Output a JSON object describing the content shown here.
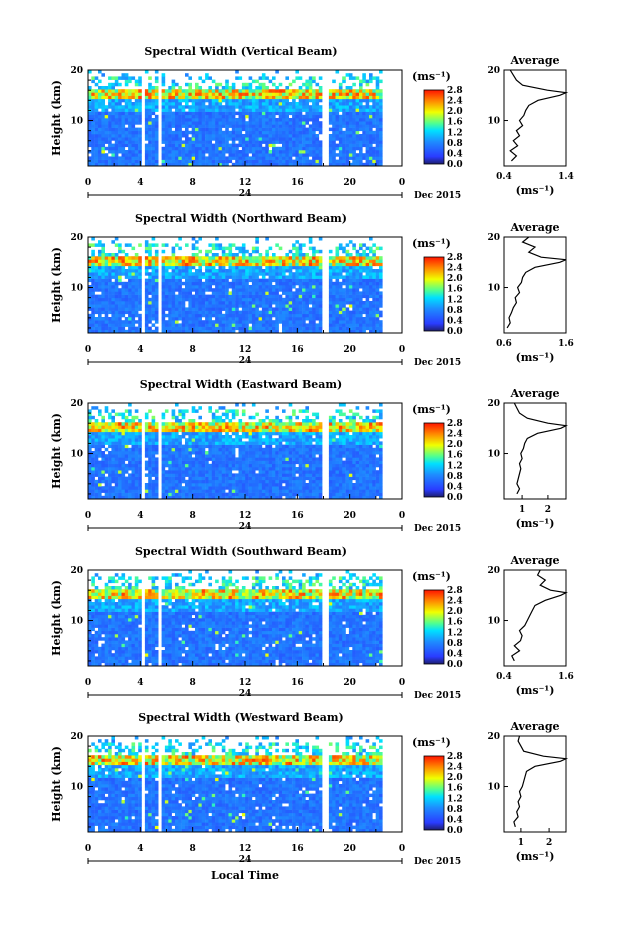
{
  "chart_data": [
    {
      "type": "heatmap",
      "title": "Spectral Width (Vertical Beam)",
      "ylabel": "Height (km)",
      "xticks": [
        "0",
        "4",
        "8",
        "12",
        "16",
        "20",
        "0"
      ],
      "xlim": [
        0,
        24
      ],
      "ylim": [
        1,
        20
      ],
      "yticks": [
        "20",
        "10"
      ],
      "date_left": "24",
      "date_right": "Dec 2015",
      "colorbar": {
        "unit": "(ms⁻¹)",
        "ticks": [
          "2.8",
          "2.4",
          "2.0",
          "1.6",
          "1.2",
          "0.8",
          "0.4",
          "0.0"
        ],
        "range": [
          0,
          2.8
        ]
      },
      "average": {
        "title": "Average",
        "xlabel": "(ms⁻¹)",
        "xticks": [
          "0.4",
          "1.4"
        ],
        "xlim": [
          0.4,
          1.4
        ],
        "yticks": [
          "20",
          "10"
        ],
        "profile": [
          [
            0.52,
            2
          ],
          [
            0.6,
            3
          ],
          [
            0.5,
            4
          ],
          [
            0.62,
            5
          ],
          [
            0.55,
            6
          ],
          [
            0.65,
            7
          ],
          [
            0.6,
            8
          ],
          [
            0.7,
            9
          ],
          [
            0.65,
            10
          ],
          [
            0.72,
            11
          ],
          [
            0.75,
            12
          ],
          [
            0.8,
            13
          ],
          [
            0.95,
            14
          ],
          [
            1.3,
            15
          ],
          [
            1.4,
            15.5
          ],
          [
            1.1,
            16
          ],
          [
            0.7,
            17
          ],
          [
            0.6,
            18
          ],
          [
            0.55,
            19
          ],
          [
            0.5,
            20
          ]
        ]
      }
    },
    {
      "type": "heatmap",
      "title": "Spectral Width (Northward Beam)",
      "ylabel": "Height (km)",
      "xticks": [
        "0",
        "4",
        "8",
        "12",
        "16",
        "20",
        "0"
      ],
      "xlim": [
        0,
        24
      ],
      "ylim": [
        1,
        20
      ],
      "yticks": [
        "20",
        "10"
      ],
      "date_left": "24",
      "date_right": "Dec 2015",
      "colorbar": {
        "unit": "(ms⁻¹)",
        "ticks": [
          "2.8",
          "2.4",
          "2.0",
          "1.6",
          "1.2",
          "0.8",
          "0.4",
          "0.0"
        ],
        "range": [
          0,
          2.8
        ]
      },
      "average": {
        "title": "Average",
        "xlabel": "(ms⁻¹)",
        "xticks": [
          "0.6",
          "1.6"
        ],
        "xlim": [
          0.6,
          1.6
        ],
        "yticks": [
          "20",
          "10"
        ],
        "profile": [
          [
            0.65,
            2
          ],
          [
            0.7,
            3
          ],
          [
            0.68,
            4
          ],
          [
            0.72,
            5
          ],
          [
            0.75,
            6
          ],
          [
            0.8,
            7
          ],
          [
            0.78,
            8
          ],
          [
            0.85,
            9
          ],
          [
            0.82,
            10
          ],
          [
            0.88,
            11
          ],
          [
            0.9,
            12
          ],
          [
            0.95,
            13
          ],
          [
            1.1,
            14
          ],
          [
            1.5,
            15
          ],
          [
            1.6,
            15.5
          ],
          [
            1.2,
            16
          ],
          [
            1.0,
            17
          ],
          [
            1.1,
            18
          ],
          [
            0.9,
            19
          ],
          [
            1.0,
            20
          ]
        ]
      }
    },
    {
      "type": "heatmap",
      "title": "Spectral Width (Eastward Beam)",
      "ylabel": "Height (km)",
      "xticks": [
        "0",
        "4",
        "8",
        "12",
        "16",
        "20",
        "0"
      ],
      "xlim": [
        0,
        24
      ],
      "ylim": [
        1,
        20
      ],
      "yticks": [
        "20",
        "10"
      ],
      "date_left": "24",
      "date_right": "Dec 2015",
      "colorbar": {
        "unit": "(ms⁻¹)",
        "ticks": [
          "2.8",
          "2.4",
          "2.0",
          "1.6",
          "1.2",
          "0.8",
          "0.4",
          "0.0"
        ],
        "range": [
          0,
          2.8
        ]
      },
      "average": {
        "title": "Average",
        "xlabel": "(ms⁻¹)",
        "xticks": [
          "1",
          "2"
        ],
        "xlim": [
          0.3,
          2.7
        ],
        "yticks": [
          "20",
          "10"
        ],
        "profile": [
          [
            0.8,
            2
          ],
          [
            0.9,
            3
          ],
          [
            0.8,
            4
          ],
          [
            0.85,
            5
          ],
          [
            0.9,
            6
          ],
          [
            0.95,
            7
          ],
          [
            0.9,
            8
          ],
          [
            1.0,
            9
          ],
          [
            0.95,
            10
          ],
          [
            1.05,
            11
          ],
          [
            1.1,
            12
          ],
          [
            1.2,
            13
          ],
          [
            1.6,
            14
          ],
          [
            2.5,
            15
          ],
          [
            2.7,
            15.5
          ],
          [
            2.0,
            16
          ],
          [
            1.2,
            17
          ],
          [
            0.9,
            18
          ],
          [
            0.8,
            19
          ],
          [
            0.7,
            20
          ]
        ]
      }
    },
    {
      "type": "heatmap",
      "title": "Spectral Width (Southward Beam)",
      "ylabel": "Height (km)",
      "xticks": [
        "0",
        "4",
        "8",
        "12",
        "16",
        "20",
        "0"
      ],
      "xlim": [
        0,
        24
      ],
      "ylim": [
        1,
        20
      ],
      "yticks": [
        "20",
        "10"
      ],
      "date_left": "24",
      "date_right": "Dec 2015",
      "colorbar": {
        "unit": "(ms⁻¹)",
        "ticks": [
          "2.8",
          "2.4",
          "2.0",
          "1.6",
          "1.2",
          "0.8",
          "0.4",
          "0.0"
        ],
        "range": [
          0,
          2.8
        ]
      },
      "average": {
        "title": "Average",
        "xlabel": "(ms⁻¹)",
        "xticks": [
          "0.4",
          "1.6"
        ],
        "xlim": [
          0.4,
          1.6
        ],
        "yticks": [
          "20",
          "10"
        ],
        "profile": [
          [
            0.6,
            2
          ],
          [
            0.55,
            3
          ],
          [
            0.7,
            4
          ],
          [
            0.6,
            5
          ],
          [
            0.72,
            6
          ],
          [
            0.75,
            7
          ],
          [
            0.7,
            8
          ],
          [
            0.8,
            9
          ],
          [
            0.85,
            10
          ],
          [
            0.9,
            11
          ],
          [
            0.95,
            12
          ],
          [
            1.0,
            13
          ],
          [
            1.2,
            14
          ],
          [
            1.5,
            15
          ],
          [
            1.6,
            15.5
          ],
          [
            1.3,
            16
          ],
          [
            1.1,
            17
          ],
          [
            1.2,
            18
          ],
          [
            1.05,
            19
          ],
          [
            1.1,
            20
          ]
        ]
      }
    },
    {
      "type": "heatmap",
      "title": "Spectral Width (Westward Beam)",
      "ylabel": "Height (km)",
      "xticks": [
        "0",
        "4",
        "8",
        "12",
        "16",
        "20",
        "0"
      ],
      "xlim": [
        0,
        24
      ],
      "ylim": [
        1,
        20
      ],
      "yticks": [
        "20",
        "10"
      ],
      "date_left": "24",
      "date_right": "Dec 2015",
      "colorbar": {
        "unit": "(ms⁻¹)",
        "ticks": [
          "2.8",
          "2.4",
          "2.0",
          "1.6",
          "1.2",
          "0.8",
          "0.4",
          "0.0"
        ],
        "range": [
          0,
          2.8
        ]
      },
      "average": {
        "title": "Average",
        "xlabel": "(ms⁻¹)",
        "xticks": [
          "1",
          "2"
        ],
        "xlim": [
          0.4,
          2.6
        ],
        "yticks": [
          "20",
          "10"
        ],
        "profile": [
          [
            0.8,
            2
          ],
          [
            0.75,
            3
          ],
          [
            0.9,
            4
          ],
          [
            0.85,
            5
          ],
          [
            0.95,
            6
          ],
          [
            0.9,
            7
          ],
          [
            1.0,
            8
          ],
          [
            0.95,
            9
          ],
          [
            1.05,
            10
          ],
          [
            1.1,
            11
          ],
          [
            1.15,
            12
          ],
          [
            1.2,
            13
          ],
          [
            1.5,
            14
          ],
          [
            2.4,
            15
          ],
          [
            2.6,
            15.5
          ],
          [
            1.8,
            16
          ],
          [
            1.1,
            17
          ],
          [
            1.0,
            18
          ],
          [
            0.9,
            19
          ],
          [
            0.95,
            20
          ]
        ]
      }
    }
  ],
  "xaxis_label": "Local Time"
}
